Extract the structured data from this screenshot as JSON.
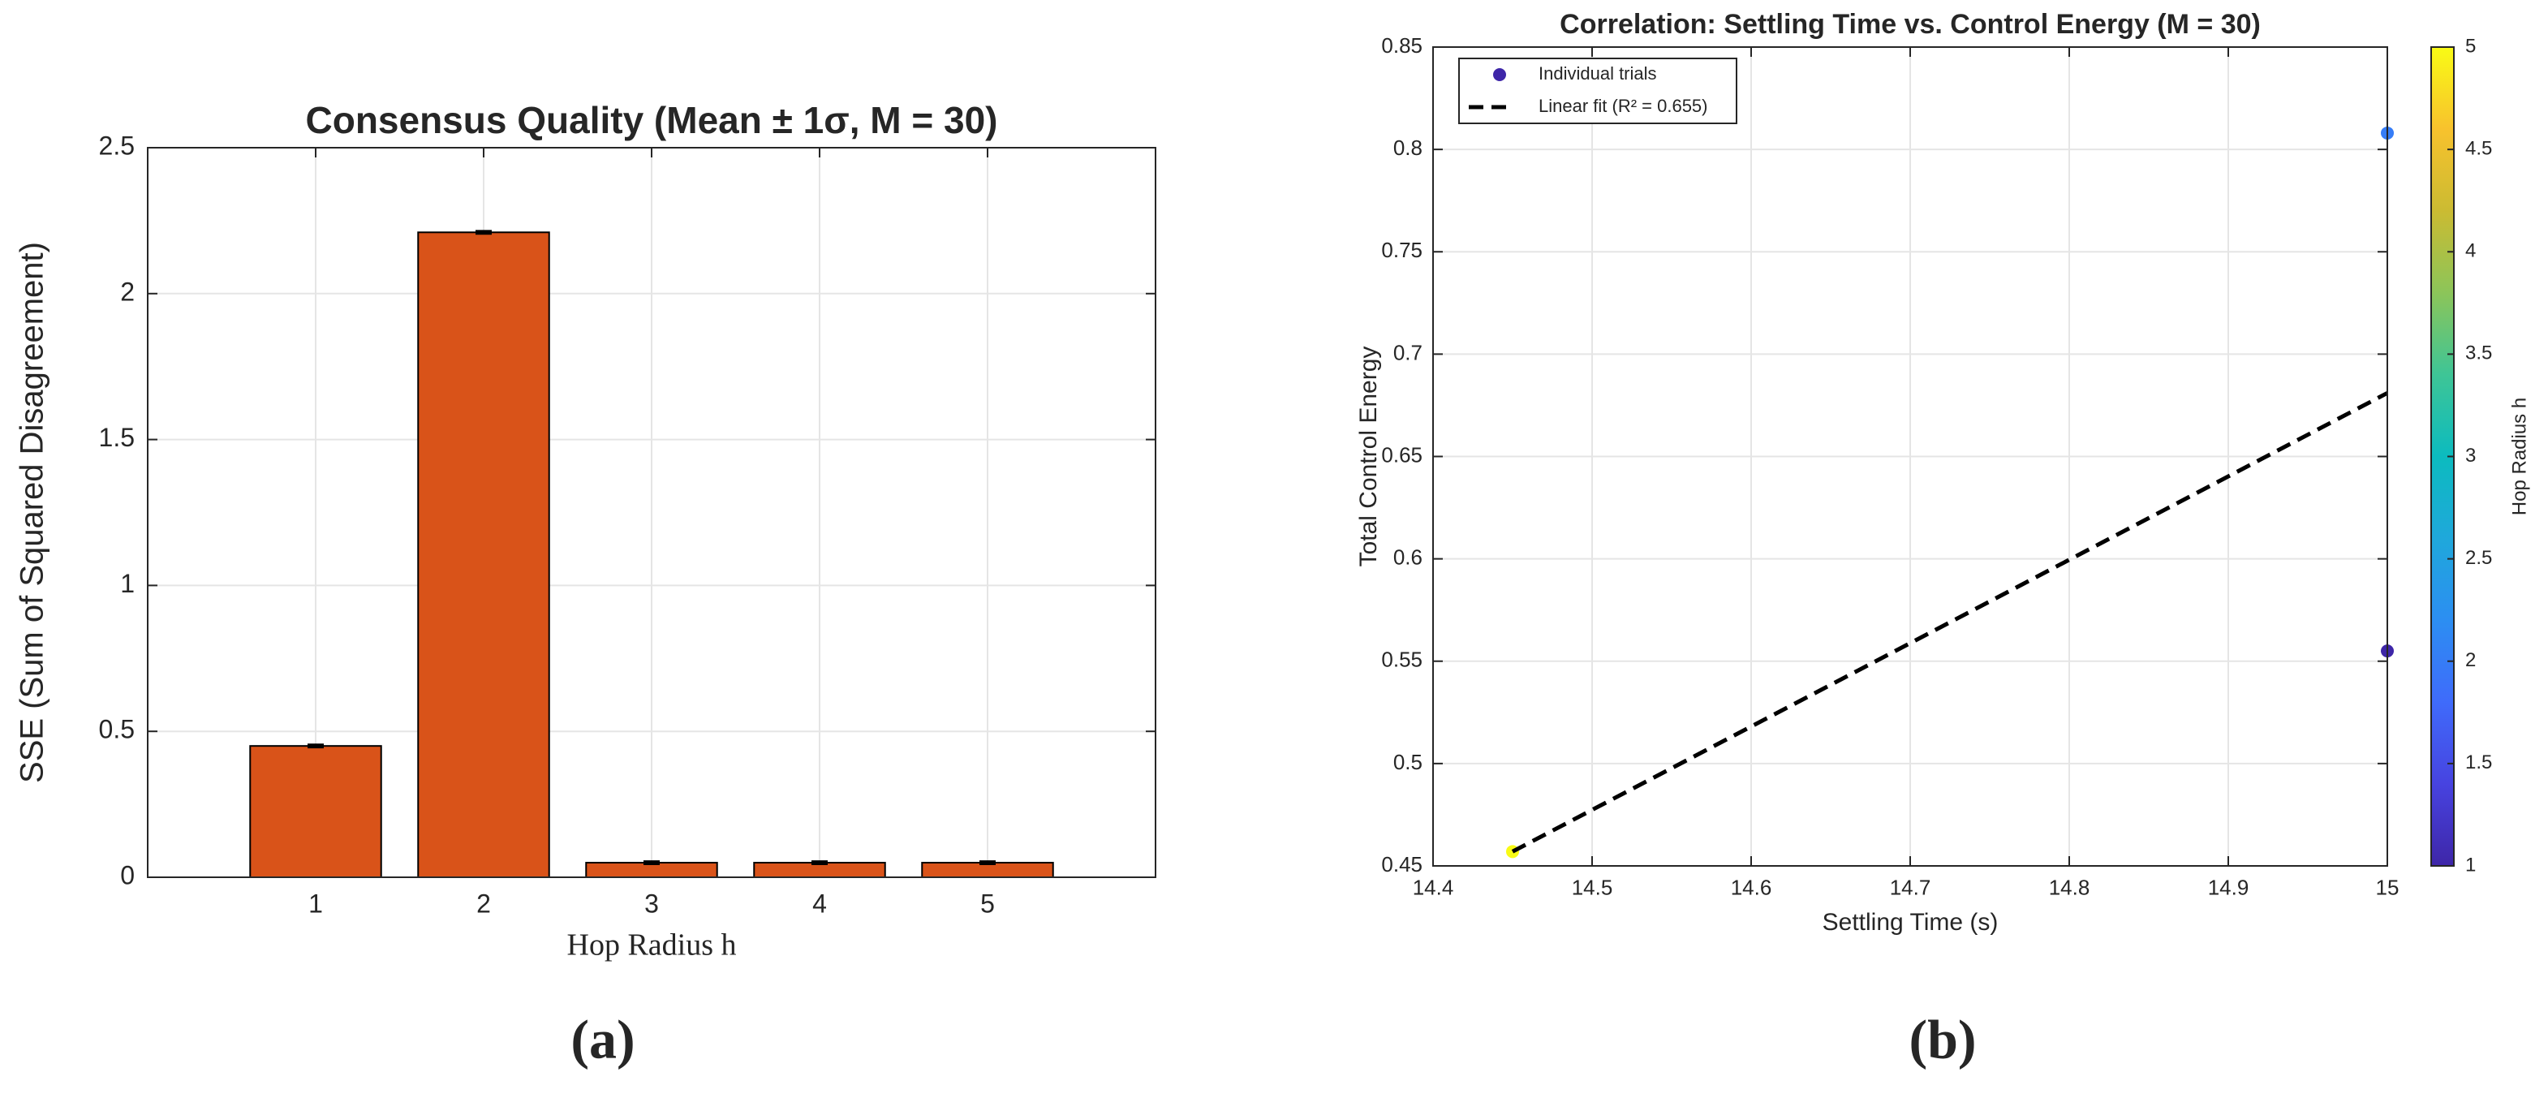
{
  "chart_data": [
    {
      "type": "bar",
      "title": "Consensus Quality (Mean ± 1σ, M = 30)",
      "xlabel": "Hop Radius h",
      "ylabel": "SSE (Sum of Squared Disagreement)",
      "x": [
        1,
        2,
        3,
        4,
        5
      ],
      "values": [
        0.45,
        2.21,
        0.05,
        0.05,
        0.05
      ],
      "errors": [
        0.004,
        0.004,
        0.004,
        0.004,
        0.004
      ],
      "color": "#d95319",
      "xlim": [
        0,
        6
      ],
      "xticks": [
        1,
        2,
        3,
        4,
        5
      ],
      "ylim": [
        0,
        2.5
      ],
      "yticks": [
        0,
        0.5,
        1,
        1.5,
        2,
        2.5
      ],
      "grid": true,
      "panel_label": "(a)"
    },
    {
      "type": "scatter",
      "title": "Correlation: Settling Time vs. Control Energy (M = 30)",
      "xlabel": "Settling Time (s)",
      "ylabel": "Total Control Energy",
      "series": [
        {
          "name": "Individual trials",
          "color": "#3e26a8",
          "x": [
            14.45,
            15,
            15
          ],
          "values": [
            0.457,
            0.808,
            0.555
          ],
          "hop": [
            5,
            2,
            1
          ]
        },
        {
          "name": "Linear fit (R² = 0.655)",
          "color": "#000000",
          "style": "dashed",
          "x": [
            14.45,
            15
          ],
          "values": [
            0.457,
            0.681
          ]
        }
      ],
      "xlim": [
        14.4,
        15
      ],
      "xticks": [
        14.4,
        14.5,
        14.6,
        14.7,
        14.8,
        14.9,
        15
      ],
      "ylim": [
        0.45,
        0.85
      ],
      "yticks": [
        0.45,
        0.5,
        0.55,
        0.6,
        0.65,
        0.7,
        0.75,
        0.8,
        0.85
      ],
      "grid": true,
      "legend": "northwest",
      "colorbar_label": "Hop Radius h",
      "clim": [
        1,
        5
      ],
      "cticks": [
        1,
        1.5,
        2,
        2.5,
        3,
        3.5,
        4,
        4.5,
        5
      ],
      "colormap": [
        "#3e26a8",
        "#4743e0",
        "#3f6bfb",
        "#2c8ef2",
        "#1fa8db",
        "#0cbbbf",
        "#3ec596",
        "#8cc559",
        "#cbbb32",
        "#f8c22d",
        "#f9fb15"
      ],
      "panel_label": "(b)"
    }
  ]
}
